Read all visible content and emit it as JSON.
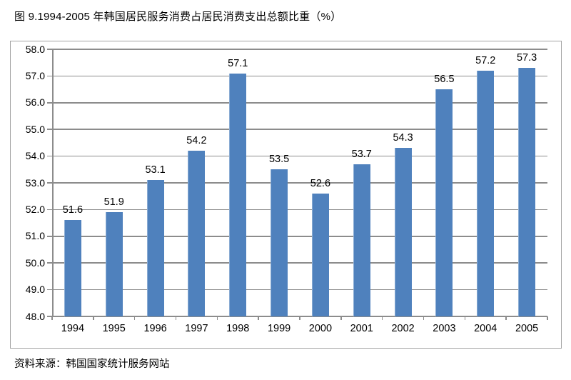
{
  "title": "图 9.1994-2005 年韩国居民服务消费占居民消费支出总额比重（%）",
  "source": "资料来源：韩国国家统计服务网站",
  "chart_data": {
    "type": "bar",
    "title": "图 9.1994-2005 年韩国居民服务消费占居民消费支出总额比重（%）",
    "categories": [
      "1994",
      "1995",
      "1996",
      "1997",
      "1998",
      "1999",
      "2000",
      "2001",
      "2002",
      "2003",
      "2004",
      "2005"
    ],
    "values": [
      51.6,
      51.9,
      53.1,
      54.2,
      57.1,
      53.5,
      52.6,
      53.7,
      54.3,
      56.5,
      57.2,
      57.3
    ],
    "xlabel": "",
    "ylabel": "",
    "ylim": [
      48.0,
      58.0
    ],
    "ytick_step": 1.0,
    "ytick_labels": [
      "48.0",
      "49.0",
      "50.0",
      "51.0",
      "52.0",
      "53.0",
      "54.0",
      "55.0",
      "56.0",
      "57.0",
      "58.0"
    ],
    "grid": true,
    "legend_position": "none",
    "data_labels": true,
    "colors": {
      "bar": "#4F81BD",
      "gridline": "#8C8C8C",
      "frame_border": "#A3A3A3",
      "label_text": "#000000"
    },
    "source_note": "资料来源：韩国国家统计服务网站"
  }
}
